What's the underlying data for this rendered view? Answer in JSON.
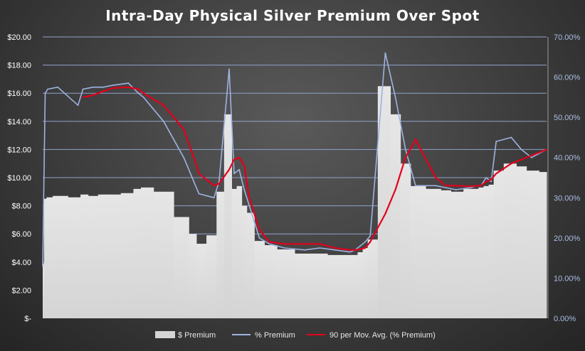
{
  "chart_data": {
    "type": "area",
    "title": "Intra-Day  Physical  Silver  Premium  Over  Spot",
    "colors": {
      "dollar_premium": "#d4d4d4",
      "pct_premium": "#9fb3e0",
      "moving_avg": "#e3001b",
      "gridline": "#8fa2cc"
    },
    "left_axis": {
      "ylim": [
        0,
        20
      ],
      "tick_values": [
        0,
        2,
        4,
        6,
        8,
        10,
        12,
        14,
        16,
        18,
        20
      ],
      "tick_labels": [
        "$-",
        "$2.00",
        "$4.00",
        "$6.00",
        "$8.00",
        "$10.00",
        "$12.00",
        "$14.00",
        "$16.00",
        "$18.00",
        "$20.00"
      ]
    },
    "right_axis": {
      "ylim": [
        0,
        70
      ],
      "tick_values": [
        0,
        10,
        20,
        30,
        40,
        50,
        60,
        70
      ],
      "tick_labels": [
        "0.00%",
        "10.00%",
        "20.00%",
        "30.00%",
        "40.00%",
        "50.00%",
        "60.00%",
        "70.00%"
      ]
    },
    "x": [
      0,
      0.005,
      0.01,
      0.03,
      0.07,
      0.08,
      0.1,
      0.12,
      0.14,
      0.17,
      0.19,
      0.2,
      0.24,
      0.28,
      0.3,
      0.31,
      0.34,
      0.35,
      0.37,
      0.38,
      0.39,
      0.4,
      0.41,
      0.43,
      0.45,
      0.48,
      0.52,
      0.55,
      0.58,
      0.61,
      0.62,
      0.63,
      0.64,
      0.65,
      0.68,
      0.7,
      0.72,
      0.74,
      0.78,
      0.8,
      0.82,
      0.85,
      0.86,
      0.87,
      0.88,
      0.89,
      0.9,
      0.93,
      0.95,
      0.97,
      1.0
    ],
    "series": [
      {
        "name": "$ Premium",
        "style": "column",
        "axis": "left",
        "values": [
          3.9,
          8.5,
          8.6,
          8.7,
          8.6,
          8.8,
          8.7,
          8.8,
          8.8,
          8.9,
          9.2,
          9.3,
          9.0,
          7.2,
          6.0,
          5.3,
          5.9,
          9.0,
          14.5,
          9.2,
          9.4,
          8.0,
          7.5,
          5.5,
          5.2,
          4.9,
          4.6,
          4.6,
          4.5,
          4.5,
          4.5,
          4.7,
          5.0,
          5.6,
          16.5,
          14.5,
          11.0,
          9.4,
          9.2,
          9.1,
          9.0,
          9.2,
          9.2,
          9.3,
          9.4,
          9.5,
          10.5,
          11.0,
          10.8,
          10.5,
          10.4
        ]
      },
      {
        "name": "% Premium",
        "style": "line",
        "axis": "right",
        "values": [
          13.0,
          56.0,
          57.0,
          57.5,
          53.0,
          57.0,
          57.5,
          57.5,
          58.0,
          58.5,
          56.0,
          55.0,
          49.0,
          40.0,
          34.0,
          31.0,
          30.0,
          34.0,
          62.0,
          36.0,
          37.0,
          32.0,
          28.0,
          20.0,
          18.5,
          17.5,
          17.0,
          17.5,
          17.0,
          16.5,
          17.0,
          18.0,
          19.0,
          20.5,
          66.0,
          55.0,
          42.0,
          33.0,
          33.0,
          32.5,
          32.0,
          32.5,
          33.0,
          33.0,
          35.0,
          34.0,
          44.0,
          45.0,
          42.0,
          40.0,
          42.0
        ]
      },
      {
        "name": "90 per Mov. Avg. (% Premium)",
        "style": "line",
        "axis": "right",
        "values": [
          null,
          null,
          null,
          null,
          null,
          55.0,
          55.5,
          56.5,
          57.3,
          57.5,
          57.0,
          56.0,
          53.0,
          47.0,
          40.0,
          36.0,
          33.0,
          33.5,
          37.0,
          39.5,
          40.0,
          38.0,
          30.0,
          22.0,
          19.0,
          18.5,
          18.5,
          18.5,
          17.5,
          17.0,
          17.0,
          17.2,
          17.5,
          19.0,
          26.0,
          32.0,
          40.0,
          44.5,
          35.0,
          33.0,
          33.0,
          32.8,
          33.0,
          33.0,
          34.0,
          34.5,
          36.0,
          38.5,
          39.5,
          40.5,
          42.0
        ]
      }
    ],
    "legend": {
      "position": "bottom",
      "entries": [
        "$ Premium",
        "% Premium",
        "90 per Mov. Avg. (% Premium)"
      ]
    },
    "grid": true
  }
}
